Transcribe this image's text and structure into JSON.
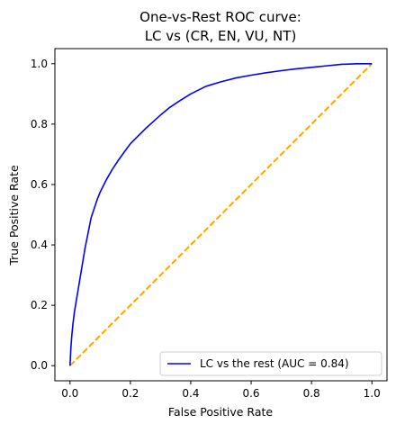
{
  "chart_data": {
    "type": "line",
    "title_lines": [
      "One-vs-Rest ROC curve:",
      "LC vs (CR, EN, VU, NT)"
    ],
    "xlabel": "False Positive Rate",
    "ylabel": "True Positive Rate",
    "xlim": [
      -0.05,
      1.05
    ],
    "ylim": [
      -0.05,
      1.05
    ],
    "x_ticks": [
      0.0,
      0.2,
      0.4,
      0.6,
      0.8,
      1.0
    ],
    "y_ticks": [
      0.0,
      0.2,
      0.4,
      0.6,
      0.8,
      1.0
    ],
    "x_tick_labels": [
      "0.0",
      "0.2",
      "0.4",
      "0.6",
      "0.8",
      "1.0"
    ],
    "y_tick_labels": [
      "0.0",
      "0.2",
      "0.4",
      "0.6",
      "0.8",
      "1.0"
    ],
    "grid": false,
    "legend_position": "lower-right",
    "series": [
      {
        "name": "LC vs the rest (AUC = 0.84)",
        "color": "#0000ff",
        "style": "solid",
        "x": [
          0.0,
          0.003,
          0.006,
          0.01,
          0.015,
          0.02,
          0.03,
          0.04,
          0.05,
          0.06,
          0.07,
          0.08,
          0.09,
          0.1,
          0.12,
          0.14,
          0.16,
          0.18,
          0.2,
          0.22,
          0.25,
          0.28,
          0.3,
          0.33,
          0.36,
          0.4,
          0.45,
          0.5,
          0.55,
          0.6,
          0.65,
          0.7,
          0.75,
          0.8,
          0.85,
          0.9,
          0.95,
          1.0
        ],
        "y": [
          0.0,
          0.06,
          0.1,
          0.14,
          0.18,
          0.21,
          0.27,
          0.33,
          0.39,
          0.44,
          0.49,
          0.52,
          0.55,
          0.575,
          0.615,
          0.65,
          0.68,
          0.708,
          0.735,
          0.755,
          0.785,
          0.812,
          0.83,
          0.855,
          0.875,
          0.9,
          0.925,
          0.94,
          0.953,
          0.962,
          0.97,
          0.977,
          0.983,
          0.988,
          0.993,
          0.998,
          1.0,
          1.0
        ]
      },
      {
        "name": "",
        "color": "#ffa500",
        "style": "dashed",
        "x": [
          0.0,
          1.0
        ],
        "y": [
          0.0,
          1.0
        ]
      }
    ]
  }
}
